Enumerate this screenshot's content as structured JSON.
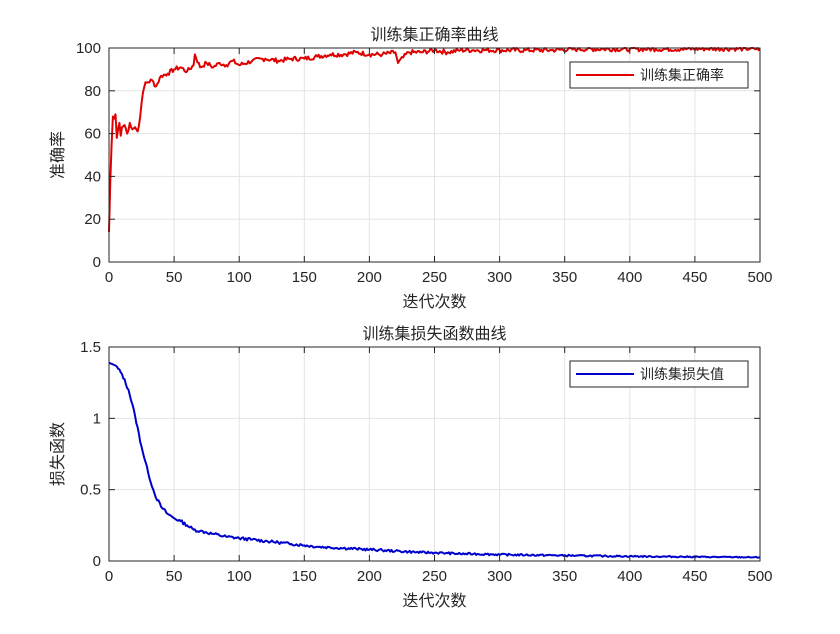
{
  "chart_data": [
    {
      "type": "line",
      "title": "训练集正确率曲线",
      "xlabel": "迭代次数",
      "ylabel": "准确率",
      "xlim": [
        0,
        500
      ],
      "ylim": [
        0,
        100
      ],
      "xticks": [
        0,
        50,
        100,
        150,
        200,
        250,
        300,
        350,
        400,
        450,
        500
      ],
      "yticks": [
        0,
        20,
        40,
        60,
        80,
        100
      ],
      "grid": true,
      "legend_position": "top-right",
      "series": [
        {
          "name": "训练集正确率",
          "color": "#e00000",
          "x": [
            0,
            1,
            2,
            3,
            4,
            5,
            6,
            7,
            8,
            9,
            10,
            12,
            14,
            16,
            18,
            20,
            22,
            24,
            26,
            28,
            30,
            33,
            36,
            40,
            45,
            50,
            55,
            60,
            65,
            66,
            70,
            75,
            80,
            85,
            90,
            95,
            100,
            110,
            120,
            130,
            140,
            150,
            160,
            170,
            180,
            190,
            200,
            210,
            220,
            222,
            230,
            240,
            250,
            260,
            270,
            280,
            290,
            300,
            320,
            340,
            360,
            380,
            400,
            420,
            440,
            460,
            480,
            500
          ],
          "y": [
            14,
            38,
            55,
            68,
            67,
            69,
            58,
            62,
            65,
            59,
            63,
            64,
            60,
            65,
            62,
            63,
            61,
            68,
            79,
            84,
            84,
            85,
            82,
            87,
            88,
            90,
            91,
            89,
            92,
            97,
            91,
            93,
            91,
            93,
            92,
            94,
            92,
            94,
            95,
            94,
            95,
            95,
            96,
            97,
            97,
            98,
            97,
            97,
            98,
            93,
            98,
            98,
            99,
            98,
            99,
            99,
            99,
            99,
            99,
            99,
            99.5,
            99.5,
            99.5,
            99.5,
            99.5,
            99.7,
            99.7,
            99.7
          ]
        }
      ]
    },
    {
      "type": "line",
      "title": "训练集损失函数曲线",
      "xlabel": "迭代次数",
      "ylabel": "损失函数",
      "xlim": [
        0,
        500
      ],
      "ylim": [
        0,
        1.5
      ],
      "xticks": [
        0,
        50,
        100,
        150,
        200,
        250,
        300,
        350,
        400,
        450,
        500
      ],
      "yticks": [
        0,
        0.5,
        1,
        1.5
      ],
      "grid": true,
      "legend_position": "top-right",
      "series": [
        {
          "name": "训练集损失值",
          "color": "#0000cc",
          "x": [
            0,
            5,
            10,
            15,
            20,
            25,
            30,
            35,
            40,
            45,
            50,
            55,
            60,
            65,
            70,
            75,
            80,
            90,
            100,
            110,
            120,
            130,
            140,
            150,
            160,
            170,
            180,
            190,
            200,
            210,
            220,
            230,
            240,
            250,
            260,
            270,
            280,
            290,
            300,
            320,
            340,
            360,
            380,
            400,
            420,
            440,
            460,
            480,
            500
          ],
          "y": [
            1.39,
            1.37,
            1.31,
            1.2,
            1.02,
            0.8,
            0.62,
            0.47,
            0.38,
            0.33,
            0.3,
            0.28,
            0.25,
            0.22,
            0.21,
            0.2,
            0.19,
            0.17,
            0.16,
            0.15,
            0.14,
            0.13,
            0.12,
            0.11,
            0.1,
            0.095,
            0.09,
            0.085,
            0.08,
            0.075,
            0.07,
            0.065,
            0.06,
            0.058,
            0.055,
            0.05,
            0.05,
            0.048,
            0.045,
            0.042,
            0.04,
            0.037,
            0.035,
            0.033,
            0.031,
            0.03,
            0.028,
            0.027,
            0.025
          ]
        }
      ]
    }
  ]
}
